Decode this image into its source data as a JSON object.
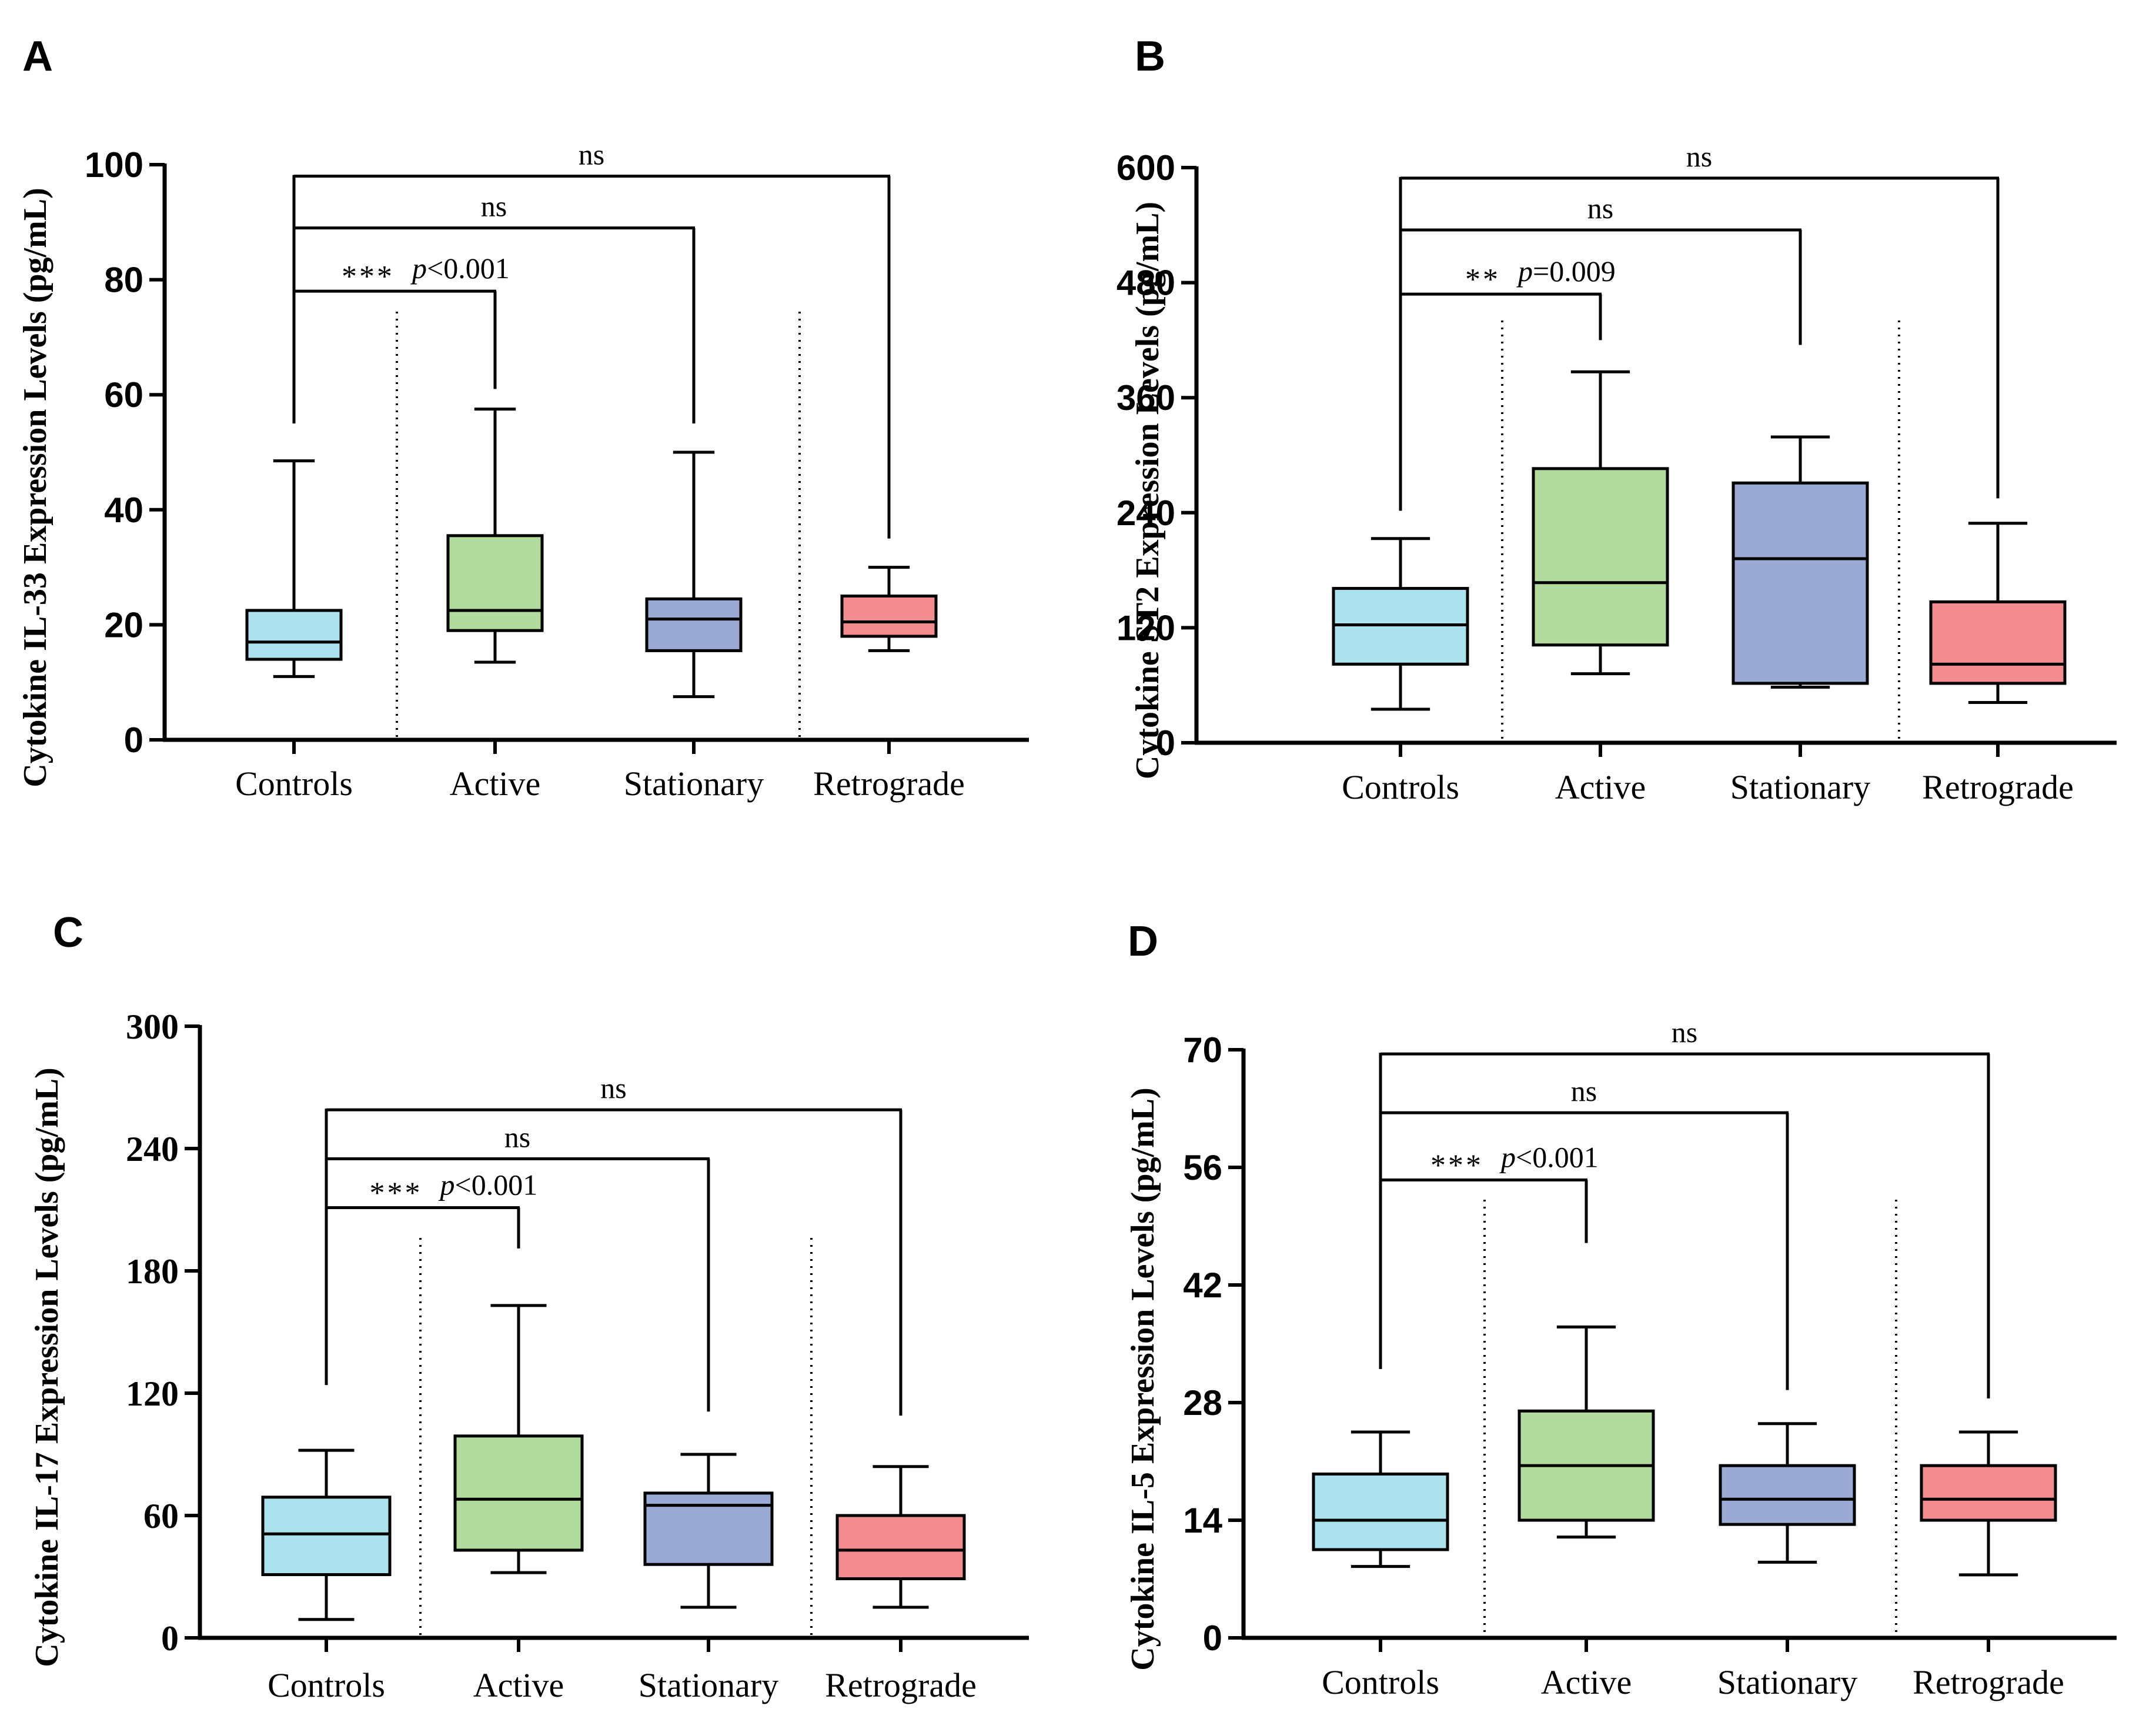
{
  "colors": {
    "Controls": "#ace2ee",
    "Active": "#b2dc9d",
    "Stationary": "#9baad5",
    "Retrograde": "#f28c8e",
    "ink": "#000000"
  },
  "chart_data": [
    {
      "panel": "A",
      "type": "box",
      "ylabel": "Cytokine IL-33 Expression Levels  (pg/mL)",
      "ylim": [
        0,
        100
      ],
      "yticks": [
        "0",
        "20",
        "40",
        "60",
        "80",
        "100"
      ],
      "categories": [
        "Controls",
        "Active",
        "Stationary",
        "Retrograde"
      ],
      "boxes": [
        {
          "group": "Controls",
          "min": 11,
          "q1": 14,
          "median": 17,
          "q3": 22.5,
          "max": 48.5
        },
        {
          "group": "Active",
          "min": 13.5,
          "q1": 19,
          "median": 22.5,
          "q3": 35.5,
          "max": 57.5
        },
        {
          "group": "Stationary",
          "min": 7.5,
          "q1": 15.5,
          "median": 21,
          "q3": 24.5,
          "max": 50
        },
        {
          "group": "Retrograde",
          "min": 15.5,
          "q1": 18,
          "median": 20.5,
          "q3": 25,
          "max": 30
        }
      ],
      "comparisons": [
        {
          "to": "Active",
          "stars": "***",
          "p": "p<0.001",
          "label": "",
          "bar": 78,
          "drop_to": 61
        },
        {
          "to": "Stationary",
          "stars": "",
          "p": "",
          "label": "ns",
          "bar": 89,
          "drop_to": 55
        },
        {
          "to": "Retrograde",
          "stars": "",
          "p": "",
          "label": "ns",
          "bar": 98,
          "drop_to": 35
        }
      ],
      "control_rise": 55
    },
    {
      "panel": "B",
      "type": "box",
      "ylabel": "Cytokine ST2 Expression Levels  (pg/mL)",
      "ylim": [
        0,
        600
      ],
      "yticks": [
        "0",
        "120",
        "240",
        "360",
        "480",
        "600"
      ],
      "categories": [
        "Controls",
        "Active",
        "Stationary",
        "Retrograde"
      ],
      "boxes": [
        {
          "group": "Controls",
          "min": 35,
          "q1": 82,
          "median": 123,
          "q3": 161,
          "max": 213
        },
        {
          "group": "Active",
          "min": 72,
          "q1": 102,
          "median": 167,
          "q3": 286,
          "max": 387
        },
        {
          "group": "Stationary",
          "min": 58,
          "q1": 62,
          "median": 192,
          "q3": 271,
          "max": 319
        },
        {
          "group": "Retrograde",
          "min": 42,
          "q1": 62,
          "median": 82,
          "q3": 147,
          "max": 229
        }
      ],
      "comparisons": [
        {
          "to": "Active",
          "stars": "**",
          "p": "p=0.009",
          "label": "",
          "bar": 468,
          "drop_to": 420
        },
        {
          "to": "Stationary",
          "stars": "",
          "p": "",
          "label": "ns",
          "bar": 535,
          "drop_to": 415
        },
        {
          "to": "Retrograde",
          "stars": "",
          "p": "",
          "label": "ns",
          "bar": 589,
          "drop_to": 255
        }
      ],
      "control_rise": 242
    },
    {
      "panel": "C",
      "type": "box",
      "ylabel": "Cytokine IL-17 Expression Levels (pg/mL)",
      "ylim": [
        0,
        300
      ],
      "yticks": [
        "0",
        "60",
        "120",
        "180",
        "240",
        "300"
      ],
      "categories": [
        "Controls",
        "Active",
        "Stationary",
        "Retrograde"
      ],
      "boxes": [
        {
          "group": "Controls",
          "min": 9,
          "q1": 31,
          "median": 51,
          "q3": 69,
          "max": 92
        },
        {
          "group": "Active",
          "min": 32,
          "q1": 43,
          "median": 68,
          "q3": 99,
          "max": 163
        },
        {
          "group": "Stationary",
          "min": 15,
          "q1": 36,
          "median": 65,
          "q3": 71,
          "max": 90
        },
        {
          "group": "Retrograde",
          "min": 15,
          "q1": 29,
          "median": 43,
          "q3": 60,
          "max": 84
        }
      ],
      "comparisons": [
        {
          "to": "Active",
          "stars": "***",
          "p": "p<0.001",
          "label": "",
          "bar": 211,
          "drop_to": 191
        },
        {
          "to": "Stationary",
          "stars": "",
          "p": "",
          "label": "ns",
          "bar": 235,
          "drop_to": 111
        },
        {
          "to": "Retrograde",
          "stars": "",
          "p": "",
          "label": "ns",
          "bar": 259,
          "drop_to": 109
        }
      ],
      "control_rise": 124
    },
    {
      "panel": "D",
      "type": "box",
      "ylabel": "Cytokine IL-5 Expression Levels  (pg/mL)",
      "ylim": [
        0,
        70
      ],
      "yticks": [
        "0",
        "14",
        "28",
        "42",
        "56",
        "70"
      ],
      "categories": [
        "Controls",
        "Active",
        "Stationary",
        "Retrograde"
      ],
      "boxes": [
        {
          "group": "Controls",
          "min": 8.5,
          "q1": 10.5,
          "median": 14,
          "q3": 19.5,
          "max": 24.5
        },
        {
          "group": "Active",
          "min": 12,
          "q1": 14,
          "median": 20.5,
          "q3": 27,
          "max": 37
        },
        {
          "group": "Stationary",
          "min": 9,
          "q1": 13.5,
          "median": 16.5,
          "q3": 20.5,
          "max": 25.5
        },
        {
          "group": "Retrograde",
          "min": 7.5,
          "q1": 14,
          "median": 16.5,
          "q3": 20.5,
          "max": 24.5
        }
      ],
      "comparisons": [
        {
          "to": "Active",
          "stars": "***",
          "p": "p<0.001",
          "label": "",
          "bar": 54.5,
          "drop_to": 47
        },
        {
          "to": "Stationary",
          "stars": "",
          "p": "",
          "label": "ns",
          "bar": 62.5,
          "drop_to": 29.5
        },
        {
          "to": "Retrograde",
          "stars": "",
          "p": "",
          "label": "ns",
          "bar": 69.5,
          "drop_to": 28.5
        }
      ],
      "control_rise": 32
    }
  ]
}
